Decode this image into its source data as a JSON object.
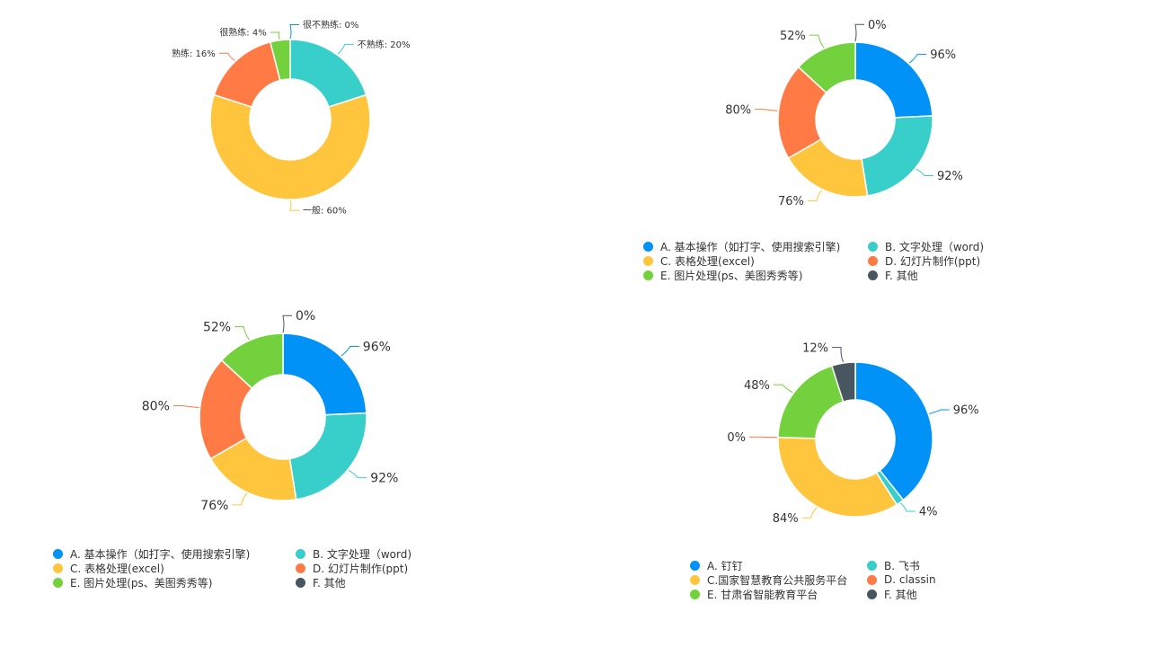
{
  "colors": {
    "blue": "#0092F7",
    "teal": "#38CFCB",
    "yellow": "#FFC53D",
    "orange": "#FF7A45",
    "green": "#73D13D",
    "slate": "#47565F",
    "gray": "#C8C8C8"
  },
  "chart_data": [
    {
      "type": "pie",
      "categories": [
        "很不熟练",
        "不熟练",
        "一般",
        "熟练",
        "很熟练"
      ],
      "values": [
        0,
        20,
        60,
        16,
        4
      ],
      "data_labels": [
        "很不熟练: 0%",
        "不熟练: 20%",
        "一般: 60%",
        "熟练: 16%",
        "很熟练: 4%"
      ],
      "colors": [
        "#0092F7",
        "#38CFCB",
        "#FFC53D",
        "#FF7A45",
        "#73D13D"
      ],
      "legend": []
    },
    {
      "type": "pie",
      "categories": [
        "A. 基本操作（如打字、使用搜索引擎)",
        "B. 文字处理（word)",
        "C. 表格处理(excel)",
        "D. 幻灯片制作(ppt)",
        "E. 图片处理(ps、美图秀秀等)",
        "F. 其他"
      ],
      "values": [
        96,
        92,
        76,
        80,
        52,
        0
      ],
      "data_labels": [
        "96%",
        "92%",
        "76%",
        "80%",
        "52%",
        "0%"
      ],
      "colors": [
        "#0092F7",
        "#38CFCB",
        "#FFC53D",
        "#FF7A45",
        "#73D13D",
        "#47565F"
      ],
      "legend": [
        "A. 基本操作（如打字、使用搜索引擎)",
        "B. 文字处理（word)",
        "C. 表格处理(excel)",
        "D. 幻灯片制作(ppt)",
        "E. 图片处理(ps、美图秀秀等)",
        "F. 其他"
      ]
    },
    {
      "type": "pie",
      "categories": [
        "A. 基本操作（如打字、使用搜索引擎)",
        "B. 文字处理（word)",
        "C. 表格处理(excel)",
        "D. 幻灯片制作(ppt)",
        "E. 图片处理(ps、美图秀秀等)",
        "F. 其他"
      ],
      "values": [
        96,
        92,
        76,
        80,
        52,
        0
      ],
      "data_labels": [
        "96%",
        "92%",
        "76%",
        "80%",
        "52%",
        "0%"
      ],
      "colors": [
        "#0092F7",
        "#38CFCB",
        "#FFC53D",
        "#FF7A45",
        "#73D13D",
        "#47565F"
      ],
      "legend": [
        "A. 基本操作（如打字、使用搜索引擎)",
        "B. 文字处理（word)",
        "C. 表格处理(excel)",
        "D. 幻灯片制作(ppt)",
        "E. 图片处理(ps、美图秀秀等)",
        "F. 其他"
      ]
    },
    {
      "type": "pie",
      "categories": [
        "A. 钉钉",
        "B. 飞书",
        "C.国家智慧教育公共服务平台",
        "D. classin",
        "E. 甘肃省智能教育平台",
        "F. 其他"
      ],
      "values": [
        96,
        4,
        84,
        0,
        48,
        12
      ],
      "data_labels": [
        "96%",
        "4%",
        "84%",
        "0%",
        "48%",
        "12%"
      ],
      "colors": [
        "#0092F7",
        "#38CFCB",
        "#FFC53D",
        "#FF7A45",
        "#73D13D",
        "#47565F"
      ],
      "legend": [
        "A. 钉钉",
        "B. 飞书",
        "C.国家智慧教育公共服务平台",
        "D. classin",
        "E. 甘肃省智能教育平台",
        "F. 其他"
      ]
    }
  ]
}
